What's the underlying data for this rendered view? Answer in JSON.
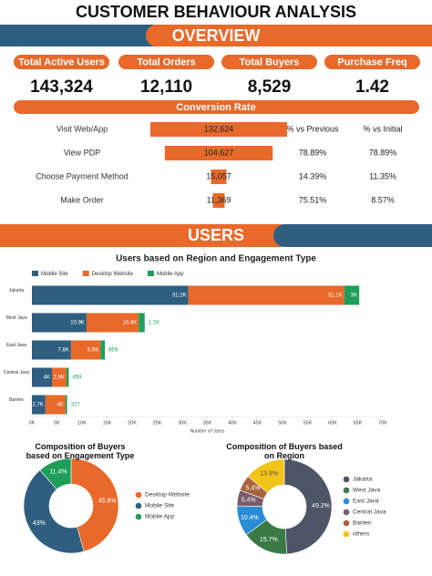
{
  "title": "CUSTOMER BEHAVIOUR ANALYSIS",
  "overview": {
    "heading": "OVERVIEW",
    "kpis": [
      {
        "label": "Total Active Users",
        "value": "143,324"
      },
      {
        "label": "Total Orders",
        "value": "12,110"
      },
      {
        "label": "Total Buyers",
        "value": "8,529"
      },
      {
        "label": "Purchase Freq",
        "value": "1.42"
      }
    ]
  },
  "conversion": {
    "heading": "Conversion Rate",
    "columns": [
      "% vs Previous",
      "% vs Initial"
    ],
    "rows": [
      [
        "78.89%",
        "78.89%"
      ],
      [
        "14.39%",
        "11.35%"
      ],
      [
        "75.51%",
        "8.57%"
      ]
    ]
  },
  "users": {
    "heading": "USERS"
  },
  "chart_data": [
    {
      "type": "funnel",
      "categories": [
        "Visit Web/App",
        "View PDP",
        "Choose Payment Method",
        "Make Order"
      ],
      "values": [
        132624,
        104627,
        15057,
        11369
      ],
      "value_labels": [
        "132,624",
        "104,627",
        "15,057",
        "11,369"
      ],
      "color": "#e8692a"
    },
    {
      "type": "stacked-bar",
      "title": "Users based on Region and Engagement Type",
      "xlabel": "Number of Users",
      "categories": [
        "Jakarta",
        "West Java",
        "East Java",
        "Central Java",
        "Banten"
      ],
      "series": [
        {
          "name": "Mobile Site",
          "color": "#2f5f80",
          "values": [
            31200,
            10900,
            7800,
            4000,
            2700
          ],
          "value_labels": [
            "31.2K",
            "10.9K",
            "7.8K",
            "4K",
            "2.7K"
          ]
        },
        {
          "name": "Desktop Website",
          "color": "#e8692a",
          "values": [
            31100,
            10400,
            5900,
            2900,
            4000
          ],
          "value_labels": [
            "31.1K",
            "10.4K",
            "5.9K",
            "2.9K",
            "4K"
          ]
        },
        {
          "name": "Mobile App",
          "color": "#1f9e5a",
          "values": [
            3000,
            1200,
            859,
            459,
            327
          ],
          "value_labels": [
            "3K",
            "1.2K",
            "859",
            "459",
            "327"
          ]
        }
      ],
      "xlim": [
        0,
        70000
      ],
      "xticks": [
        {
          "value": 0,
          "label": "0K"
        },
        {
          "value": 5000,
          "label": "5K"
        },
        {
          "value": 10000,
          "label": "10K"
        },
        {
          "value": 15000,
          "label": "15K"
        },
        {
          "value": 20000,
          "label": "20K"
        },
        {
          "value": 25000,
          "label": "25K"
        },
        {
          "value": 30000,
          "label": "30K"
        },
        {
          "value": 35000,
          "label": "35K"
        },
        {
          "value": 40000,
          "label": "40K"
        },
        {
          "value": 45000,
          "label": "45K"
        },
        {
          "value": 50000,
          "label": "50K"
        },
        {
          "value": 55000,
          "label": "55K"
        },
        {
          "value": 60000,
          "label": "60K"
        },
        {
          "value": 65000,
          "label": "65K"
        },
        {
          "value": 70000,
          "label": "70K"
        }
      ],
      "legend": "top-left"
    },
    {
      "type": "donut",
      "title": "Composition of Buyers based on Engagement Type",
      "categories": [
        "Desktop Website",
        "Mobile Site",
        "Mobile App"
      ],
      "values": [
        45.6,
        43,
        11.4
      ],
      "value_labels": [
        "45.6%",
        "43%",
        "11.4%"
      ],
      "colors": [
        "#e8692a",
        "#2f5f80",
        "#1f9e5a"
      ],
      "legend": "right"
    },
    {
      "type": "donut",
      "title": "Composition of Buyers based on Region",
      "categories": [
        "Jakarta",
        "West Java",
        "East Java",
        "Central Java",
        "Banten",
        "others"
      ],
      "values": [
        49.2,
        15.7,
        10.4,
        5.4,
        5.4,
        13.9
      ],
      "value_labels": [
        "49.2%",
        "15.7%",
        "10.4%",
        "5.4%",
        "5.4%",
        "13.9%"
      ],
      "colors": [
        "#4d5566",
        "#3b7a45",
        "#2a8dd4",
        "#7b5b6b",
        "#a8633f",
        "#f2c318"
      ],
      "legend": "right"
    }
  ]
}
